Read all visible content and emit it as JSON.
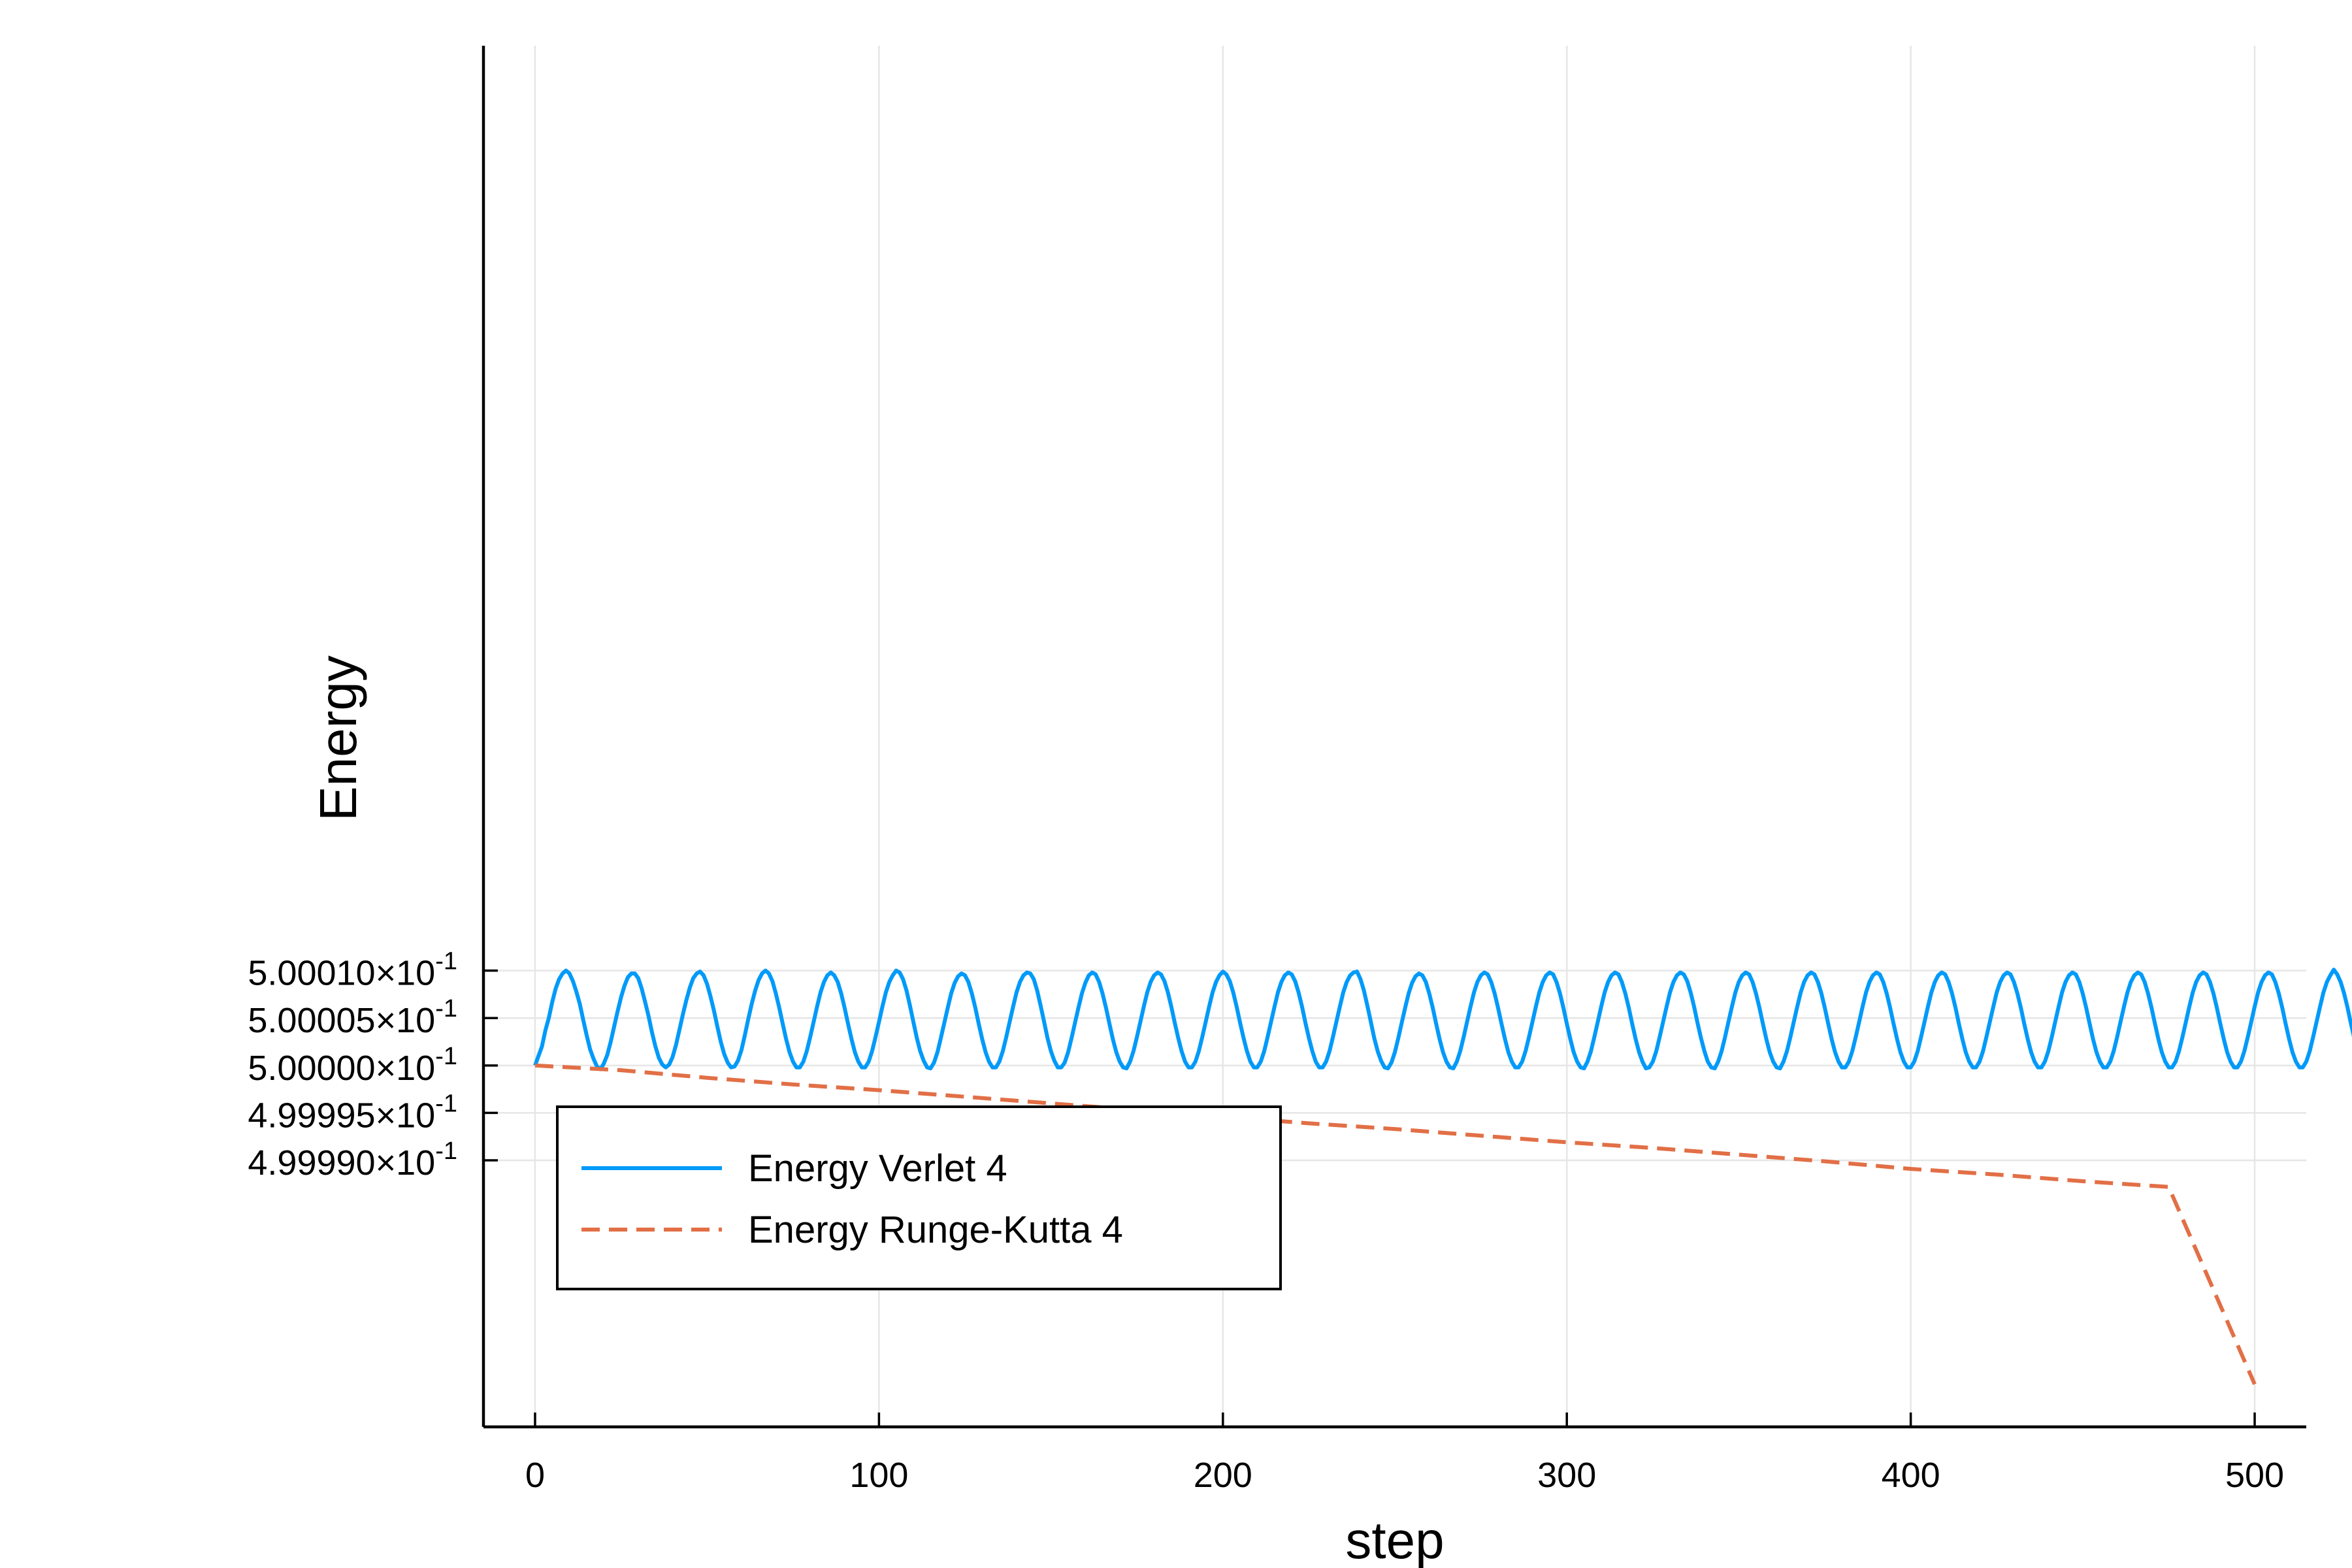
{
  "chart_data": {
    "type": "line",
    "xlabel": "step",
    "ylabel": "Energy",
    "xlim": [
      -15,
      515
    ],
    "ylim": [
      0.4999619,
      0.5001075
    ],
    "x_ticks": [
      {
        "value": 0,
        "label": "0"
      },
      {
        "value": 100,
        "label": "100"
      },
      {
        "value": 200,
        "label": "200"
      },
      {
        "value": 300,
        "label": "300"
      },
      {
        "value": 400,
        "label": "400"
      },
      {
        "value": 500,
        "label": "500"
      }
    ],
    "y_ticks": [
      {
        "value": 0.49999,
        "mantissa": "4.99990",
        "times": "×10",
        "exp": "-1"
      },
      {
        "value": 0.499995,
        "mantissa": "4.99995",
        "times": "×10",
        "exp": "-1"
      },
      {
        "value": 0.5,
        "mantissa": "5.00000",
        "times": "×10",
        "exp": "-1"
      },
      {
        "value": 0.500005,
        "mantissa": "5.00005",
        "times": "×10",
        "exp": "-1"
      },
      {
        "value": 0.50001,
        "mantissa": "5.00010",
        "times": "×10",
        "exp": "-1"
      }
    ],
    "grid": true,
    "legend_position": "bottom-left",
    "series": [
      {
        "name": "Energy Verlet 4",
        "color": "#009af9",
        "style": "solid",
        "x_start": 0,
        "x_step": 1,
        "values": [
          0.5,
          0.500001,
          0.500002,
          0.5000037,
          0.500005,
          0.5000067,
          0.5000081,
          0.5000091,
          0.5000097,
          0.50001,
          0.5000097,
          0.5000089,
          0.5000078,
          0.5000065,
          0.5000048,
          0.5000032,
          0.5000017,
          0.5000007,
          0.4999999,
          0.4999996,
          0.5000002,
          0.5000011,
          0.5000025,
          0.5000041,
          0.5000057,
          0.5000072,
          0.5000084,
          0.5000093,
          0.5000097,
          0.5000097,
          0.5000092,
          0.5000081,
          0.5000067,
          0.5000052,
          0.5000035,
          0.500002,
          0.5000008,
          0.5000001,
          0.4999998,
          0.5000001,
          0.5000009,
          0.5000022,
          0.5000038,
          0.5000054,
          0.5000069,
          0.5000082,
          0.5000092,
          0.5000097,
          0.5000099,
          0.5000095,
          0.5000086,
          0.5000073,
          0.5000058,
          0.5000041,
          0.5000025,
          0.5000012,
          0.5000003,
          0.4999998,
          0.4999999,
          0.5000005,
          0.5000016,
          0.5000032,
          0.5000049,
          0.5000065,
          0.5000079,
          0.500009,
          0.5000097,
          0.50001,
          0.5000097,
          0.5000089,
          0.5000076,
          0.5000061,
          0.5000044,
          0.5000028,
          0.5000014,
          0.5000004,
          0.4999998,
          0.4999998,
          0.5000004,
          0.5000015,
          0.500003,
          0.5000046,
          0.5000062,
          0.5000077,
          0.5000088,
          0.5000095,
          0.5000098,
          0.5000095,
          0.5000088,
          0.5000076,
          0.5000061,
          0.5000044,
          0.5000028,
          0.5000014,
          0.5000004,
          0.4999998,
          0.4999998,
          0.5000004,
          0.5000015,
          0.500003,
          0.5000046,
          0.5000062,
          0.5000077,
          0.5000088,
          0.5000095,
          0.50001,
          0.5000098,
          0.5000091,
          0.5000079,
          0.5000063,
          0.5000046,
          0.5000029,
          0.5000015,
          0.5000005,
          0.4999998,
          0.4999997,
          0.5000003,
          0.5000014,
          0.5000029,
          0.5000045,
          0.5000061,
          0.5000076,
          0.5000087,
          0.5000094,
          0.5000097,
          0.5000095,
          0.5000088,
          0.5000076,
          0.5000061,
          0.5000044,
          0.5000028,
          0.5000014,
          0.5000004,
          0.4999998,
          0.4999998,
          0.5000004,
          0.5000015,
          0.500003,
          0.5000046,
          0.5000062,
          0.5000077,
          0.5000088,
          0.5000095,
          0.5000098,
          0.5000097,
          0.5000091,
          0.5000079,
          0.5000063,
          0.5000046,
          0.5000029,
          0.5000015,
          0.5000005,
          0.4999998,
          0.4999998,
          0.5000003,
          0.5000014,
          0.5000029,
          0.5000045,
          0.5000061,
          0.5000076,
          0.5000087,
          0.5000095,
          0.5000098,
          0.5000096,
          0.5000088,
          0.5000076,
          0.5000061,
          0.5000044,
          0.5000028,
          0.5000014,
          0.5000004,
          0.4999998,
          0.4999997,
          0.5000004,
          0.5000015,
          0.500003,
          0.5000046,
          0.5000062,
          0.5000077,
          0.5000088,
          0.5000095,
          0.5000098,
          0.5000096,
          0.5000089,
          0.5000077,
          0.5000062,
          0.5000045,
          0.5000029,
          0.5000015,
          0.5000004,
          0.4999998,
          0.4999998,
          0.5000004,
          0.5000015,
          0.500003,
          0.5000046,
          0.5000062,
          0.5000077,
          0.5000088,
          0.5000095,
          0.5000099,
          0.5000096,
          0.5000089,
          0.5000077,
          0.5000062,
          0.5000045,
          0.5000029,
          0.5000015,
          0.5000004,
          0.4999998,
          0.4999998,
          0.5000004,
          0.5000015,
          0.500003,
          0.5000046,
          0.5000062,
          0.5000077,
          0.5000088,
          0.5000095,
          0.5000098,
          0.5000096,
          0.5000089,
          0.5000077,
          0.5000062,
          0.5000045,
          0.5000029,
          0.5000015,
          0.5000004,
          0.4999998,
          0.4999998,
          0.5000004,
          0.5000015,
          0.500003,
          0.5000046,
          0.5000062,
          0.5000077,
          0.5000088,
          0.5000095,
          0.5000098,
          0.5000099,
          0.5000091,
          0.5000079,
          0.5000063,
          0.5000046,
          0.5000029,
          0.5000015,
          0.5000005,
          0.4999998,
          0.4999997,
          0.5000003,
          0.5000014,
          0.5000029,
          0.5000045,
          0.5000061,
          0.5000076,
          0.5000087,
          0.5000094,
          0.5000097,
          0.5000095,
          0.5000088,
          0.5000076,
          0.5000061,
          0.5000044,
          0.5000028,
          0.5000014,
          0.5000004,
          0.4999998,
          0.4999997,
          0.5000004,
          0.5000015,
          0.500003,
          0.5000046,
          0.5000062,
          0.5000077,
          0.5000088,
          0.5000095,
          0.5000098,
          0.5000096,
          0.5000088,
          0.5000076,
          0.5000061,
          0.5000044,
          0.5000028,
          0.5000014,
          0.5000004,
          0.4999998,
          0.4999998,
          0.5000004,
          0.5000015,
          0.500003,
          0.5000046,
          0.5000062,
          0.5000077,
          0.5000088,
          0.5000095,
          0.5000098,
          0.5000096,
          0.5000088,
          0.5000076,
          0.5000061,
          0.5000044,
          0.5000028,
          0.5000014,
          0.5000004,
          0.4999998,
          0.4999997,
          0.5000004,
          0.5000015,
          0.500003,
          0.5000046,
          0.5000062,
          0.5000077,
          0.5000088,
          0.5000095,
          0.5000098,
          0.5000096,
          0.5000088,
          0.5000076,
          0.5000061,
          0.5000044,
          0.5000028,
          0.5000014,
          0.5000004,
          0.4999997,
          0.4999998,
          0.5000004,
          0.5000015,
          0.500003,
          0.5000046,
          0.5000062,
          0.5000077,
          0.5000088,
          0.5000095,
          0.5000098,
          0.5000096,
          0.5000089,
          0.5000077,
          0.5000062,
          0.5000045,
          0.5000029,
          0.5000015,
          0.5000004,
          0.4999998,
          0.4999997,
          0.5000004,
          0.5000015,
          0.500003,
          0.5000046,
          0.5000062,
          0.5000077,
          0.5000088,
          0.5000095,
          0.5000098,
          0.5000096,
          0.5000088,
          0.5000076,
          0.5000061,
          0.5000044,
          0.5000028,
          0.5000014,
          0.5000004,
          0.4999998,
          0.4999997,
          0.5000004,
          0.5000015,
          0.500003,
          0.5000046,
          0.5000062,
          0.5000077,
          0.5000088,
          0.5000095,
          0.5000098,
          0.5000096,
          0.5000088,
          0.5000076,
          0.5000061,
          0.5000044,
          0.5000028,
          0.5000014,
          0.5000004,
          0.4999998,
          0.4999998,
          0.5000004,
          0.5000015,
          0.500003,
          0.5000046,
          0.5000062,
          0.5000077,
          0.5000088,
          0.5000095,
          0.5000098,
          0.5000096,
          0.5000088,
          0.5000076,
          0.5000061,
          0.5000044,
          0.5000028,
          0.5000014,
          0.5000004,
          0.4999998,
          0.4999998,
          0.5000004,
          0.5000015,
          0.500003,
          0.5000046,
          0.5000062,
          0.5000077,
          0.5000088,
          0.5000095,
          0.5000098,
          0.5000096,
          0.5000088,
          0.5000076,
          0.5000061,
          0.5000044,
          0.5000028,
          0.5000014,
          0.5000004,
          0.4999998,
          0.4999998,
          0.5000004,
          0.5000015,
          0.500003,
          0.5000046,
          0.5000062,
          0.5000077,
          0.5000088,
          0.5000095,
          0.5000098,
          0.5000096,
          0.5000088,
          0.5000076,
          0.5000061,
          0.5000044,
          0.5000028,
          0.5000014,
          0.5000004,
          0.4999998,
          0.4999998,
          0.5000004,
          0.5000015,
          0.500003,
          0.5000046,
          0.5000062,
          0.5000077,
          0.5000088,
          0.5000095,
          0.5000098,
          0.5000096,
          0.5000088,
          0.5000076,
          0.5000061,
          0.5000044,
          0.5000028,
          0.5000014,
          0.5000004,
          0.4999998,
          0.4999998,
          0.5000004,
          0.5000015,
          0.500003,
          0.5000046,
          0.5000062,
          0.5000077,
          0.5000088,
          0.5000095,
          0.5000098,
          0.5000096,
          0.5000088,
          0.5000076,
          0.5000061,
          0.5000044,
          0.5000028,
          0.5000014,
          0.5000004,
          0.4999998,
          0.4999998,
          0.5000004,
          0.5000015,
          0.500003,
          0.5000046,
          0.5000062,
          0.5000077,
          0.5000088,
          0.5000095,
          0.5000098,
          0.5000096,
          0.5000088,
          0.5000076,
          0.5000061,
          0.5000044,
          0.5000028,
          0.5000014,
          0.5000004,
          0.4999998,
          0.4999998,
          0.5000004,
          0.5000015,
          0.500003,
          0.5000046,
          0.5000062,
          0.5000077,
          0.5000088,
          0.5000095,
          0.5000098,
          0.5000096,
          0.5000088,
          0.5000076,
          0.5000061,
          0.5000044,
          0.5000028,
          0.5000014,
          0.5000004,
          0.4999998,
          0.4999998,
          0.5000004,
          0.5000015,
          0.500003,
          0.5000046,
          0.5000062,
          0.5000077,
          0.5000088,
          0.5000095,
          0.5000101,
          0.5000096,
          0.5000088,
          0.5000076,
          0.5000061,
          0.5000044,
          0.5000028,
          0.5000014,
          0.5000004,
          0.4999996
        ]
      },
      {
        "name": "Energy Runge-Kutta 4",
        "color": "#e26f46",
        "style": "dashed",
        "x": [
          0,
          25,
          50,
          75,
          100,
          125,
          150,
          175,
          200,
          225,
          250,
          275,
          300,
          325,
          350,
          375,
          400,
          425,
          450,
          475,
          500
        ],
        "values": [
          0.5,
          0.4999995,
          0.4999987,
          0.499998,
          0.4999974,
          0.4999967,
          0.499996,
          0.4999953,
          0.4999946,
          0.4999939,
          0.4999933,
          0.4999926,
          0.4999919,
          0.4999913,
          0.4999906,
          0.4999899,
          0.4999891,
          0.4999885,
          0.4999878,
          0.4999872,
          0.4999664
        ]
      }
    ]
  }
}
